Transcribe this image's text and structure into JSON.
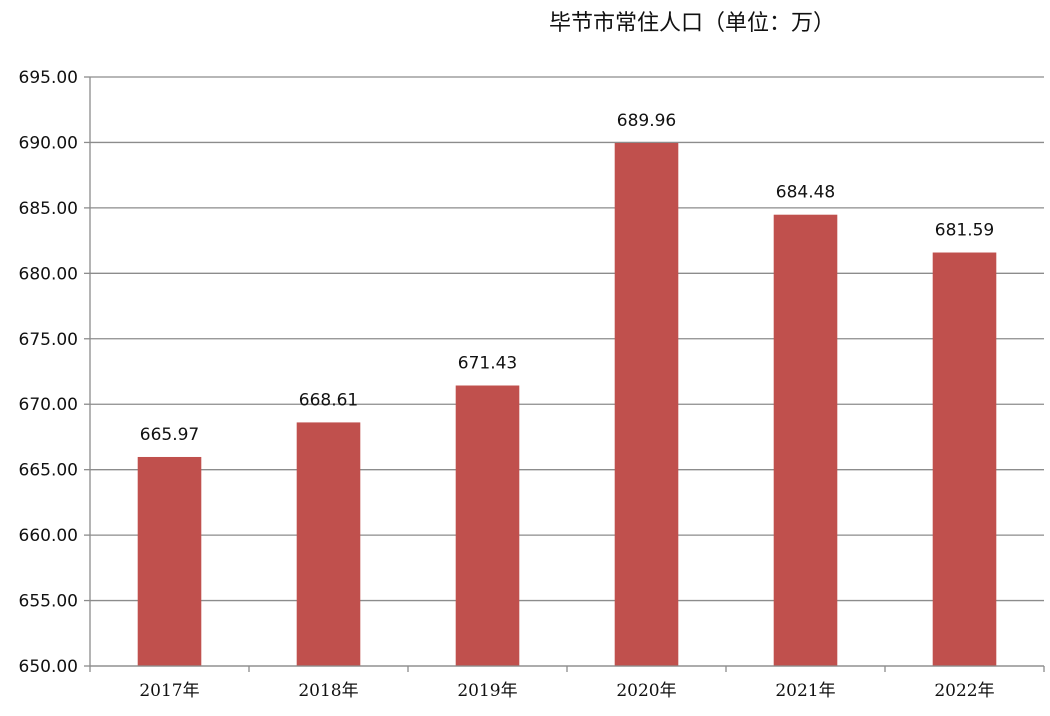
{
  "chart_data": {
    "type": "bar",
    "title": "毕节市常住人口（单位：万）",
    "categories": [
      "2017年",
      "2018年",
      "2019年",
      "2020年",
      "2021年",
      "2022年"
    ],
    "values": [
      665.97,
      668.61,
      671.43,
      689.96,
      684.48,
      681.59
    ],
    "data_labels": [
      "665.97",
      "668.61",
      "671.43",
      "689.96",
      "684.48",
      "681.59"
    ],
    "ylim": [
      650,
      695
    ],
    "yticks": [
      "650.00",
      "655.00",
      "660.00",
      "665.00",
      "670.00",
      "675.00",
      "680.00",
      "685.00",
      "690.00",
      "695.00"
    ],
    "xlabel": "",
    "ylabel": "",
    "grid": true,
    "legend": "none"
  },
  "colors": {
    "bar": "#c0504d",
    "grid": "#8c8c8c",
    "axis": "#8c8c8c"
  }
}
